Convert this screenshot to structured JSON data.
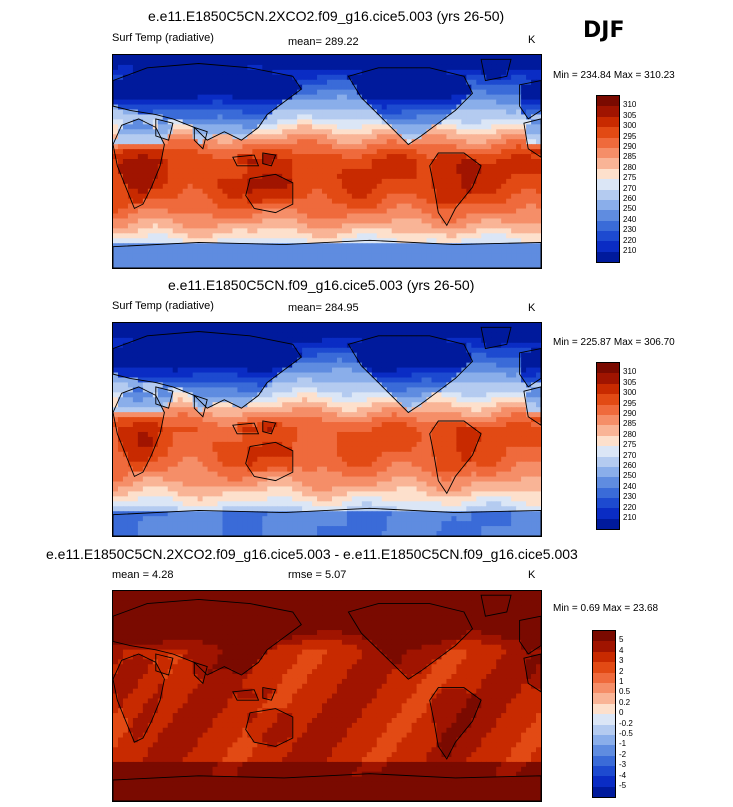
{
  "season": "DJF",
  "panels": [
    {
      "title": "e.e11.E1850C5CN.2XCO2.f09_g16.cice5.003 (yrs 26-50)",
      "left_label": "Surf Temp (radiative)",
      "mean_text": "mean= 289.22",
      "units": "K",
      "minmax": "Min = 234.84 Max = 310.23",
      "field": "abs",
      "cb_labels": [
        "310",
        "305",
        "300",
        "295",
        "290",
        "285",
        "280",
        "275",
        "270",
        "260",
        "250",
        "240",
        "230",
        "220",
        "210"
      ]
    },
    {
      "title": "e.e11.E1850C5CN.f09_g16.cice5.003 (yrs 26-50)",
      "left_label": "Surf Temp (radiative)",
      "mean_text": "mean= 284.95",
      "units": "K",
      "minmax": "Min = 225.87 Max = 306.70",
      "field": "abs",
      "cb_labels": [
        "310",
        "305",
        "300",
        "295",
        "290",
        "285",
        "280",
        "275",
        "270",
        "260",
        "250",
        "240",
        "230",
        "220",
        "210"
      ]
    },
    {
      "title": "e.e11.E1850C5CN.2XCO2.f09_g16.cice5.003 - e.e11.E1850C5CN.f09_g16.cice5.003",
      "left_label": "mean =  4.28",
      "mean_text": "rmse =  5.07",
      "units": "K",
      "minmax": "Min =  0.69 Max = 23.68",
      "field": "diff",
      "cb_labels": [
        "5",
        "4",
        "3",
        "2",
        "1",
        "0.5",
        "0.2",
        "0",
        "-0.2",
        "-0.5",
        "-1",
        "-2",
        "-3",
        "-4",
        "-5"
      ]
    }
  ],
  "colors": {
    "abs_scale": [
      "#7a0a00",
      "#a01400",
      "#c82a00",
      "#e24a14",
      "#ef6a3c",
      "#f58e68",
      "#f9b496",
      "#fde0cc",
      "#dbe6f6",
      "#b4cbf0",
      "#8aaeea",
      "#5f8ce0",
      "#3a6bd8",
      "#1d4ad0",
      "#0a2cc4",
      "#001a9c"
    ],
    "diff_scale": [
      "#7a0a00",
      "#a01400",
      "#c82a00",
      "#e24a14",
      "#ef6a3c",
      "#f58e68",
      "#f9b496",
      "#fde0cc",
      "#dbe6f6",
      "#b4cbf0",
      "#8aaeea",
      "#5f8ce0",
      "#3a6bd8",
      "#1d4ad0",
      "#0a2cc4",
      "#001a9c"
    ]
  }
}
